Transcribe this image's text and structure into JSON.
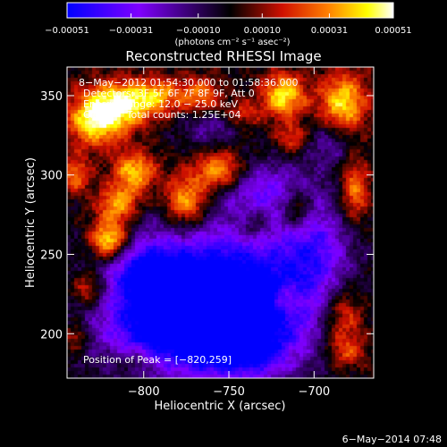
{
  "chart_data": {
    "type": "heatmap",
    "title": "Reconstructed RHESSI Image",
    "xlabel": "Heliocentric X (arcsec)",
    "ylabel": "Heliocentric Y (arcsec)",
    "xlim": [
      -845,
      -665
    ],
    "ylim": [
      172,
      368
    ],
    "x_ticks": [
      -800,
      -750,
      -700
    ],
    "x_tick_labels": [
      "−800",
      "−750",
      "−700"
    ],
    "y_ticks": [
      200,
      250,
      300,
      350
    ],
    "y_tick_labels": [
      "200",
      "250",
      "300",
      "350"
    ],
    "colorbar": {
      "min": -0.00051,
      "max": 0.00051,
      "ticks": [
        -0.00051,
        -0.00031,
        -0.0001,
        0.0001,
        0.00031,
        0.00051
      ],
      "tick_labels": [
        "−0.00051",
        "−0.00031",
        "−0.00010",
        "0.00010",
        "0.00031",
        "0.00051"
      ],
      "units_label": "(photons cm⁻² s⁻¹ asec⁻²)",
      "colormap": [
        "#0000ff",
        "#7f00ff",
        "#000000",
        "#d01000",
        "#ff8000",
        "#ffff00",
        "#ffffff"
      ]
    },
    "annotations": [
      "8−May−2012 01:54:30.000 to 01:58:36.000",
      "Detectors: 3F 5F 6F 7F 8F 9F, Att 0",
      "Energy Range: 12.0 − 25.0 keV",
      "Clean     Total counts: 1.25E+04"
    ],
    "peak_label": "Position of Peak = [−820,259]",
    "peak_position": [
      -820,
      259
    ],
    "timestamp": "6−May−2014 07:48",
    "blobs": [
      {
        "x": -820,
        "y": 259,
        "sx": 8,
        "sy": 9,
        "v": 1.0
      },
      {
        "x": -815,
        "y": 282,
        "sx": 9,
        "sy": 8,
        "v": 0.7
      },
      {
        "x": -805,
        "y": 302,
        "sx": 9,
        "sy": 9,
        "v": 0.75
      },
      {
        "x": -828,
        "y": 335,
        "sx": 12,
        "sy": 12,
        "v": 0.9
      },
      {
        "x": -812,
        "y": 345,
        "sx": 12,
        "sy": 10,
        "v": 0.78
      },
      {
        "x": -792,
        "y": 350,
        "sx": 10,
        "sy": 8,
        "v": 0.6
      },
      {
        "x": -840,
        "y": 300,
        "sx": 6,
        "sy": 8,
        "v": 0.55
      },
      {
        "x": -775,
        "y": 283,
        "sx": 9,
        "sy": 12,
        "v": 0.82
      },
      {
        "x": -755,
        "y": 302,
        "sx": 10,
        "sy": 9,
        "v": 0.78
      },
      {
        "x": -767,
        "y": 350,
        "sx": 9,
        "sy": 8,
        "v": 0.55
      },
      {
        "x": -742,
        "y": 338,
        "sx": 7,
        "sy": 6,
        "v": 0.4
      },
      {
        "x": -718,
        "y": 350,
        "sx": 9,
        "sy": 10,
        "v": 0.85
      },
      {
        "x": -713,
        "y": 323,
        "sx": 6,
        "sy": 6,
        "v": 0.45
      },
      {
        "x": -710,
        "y": 279,
        "sx": 6,
        "sy": 9,
        "v": 0.55
      },
      {
        "x": -683,
        "y": 345,
        "sx": 10,
        "sy": 14,
        "v": 0.8
      },
      {
        "x": -676,
        "y": 290,
        "sx": 6,
        "sy": 14,
        "v": 0.6
      },
      {
        "x": -832,
        "y": 228,
        "sx": 7,
        "sy": 8,
        "v": 0.55
      },
      {
        "x": -840,
        "y": 198,
        "sx": 5,
        "sy": 6,
        "v": 0.4
      },
      {
        "x": -716,
        "y": 222,
        "sx": 6,
        "sy": 6,
        "v": 0.45
      },
      {
        "x": -683,
        "y": 210,
        "sx": 9,
        "sy": 14,
        "v": 0.55
      },
      {
        "x": -680,
        "y": 188,
        "sx": 8,
        "sy": 7,
        "v": 0.4
      },
      {
        "x": -735,
        "y": 268,
        "sx": 6,
        "sy": 6,
        "v": 0.3
      },
      {
        "x": -805,
        "y": 183,
        "sx": 8,
        "sy": 6,
        "v": 0.3
      },
      {
        "x": -770,
        "y": 228,
        "sx": 35,
        "sy": 30,
        "v": -0.9
      },
      {
        "x": -735,
        "y": 215,
        "sx": 30,
        "sy": 28,
        "v": -0.8
      },
      {
        "x": -700,
        "y": 255,
        "sx": 15,
        "sy": 22,
        "v": -0.6
      },
      {
        "x": -790,
        "y": 205,
        "sx": 25,
        "sy": 20,
        "v": -0.7
      },
      {
        "x": -730,
        "y": 292,
        "sx": 20,
        "sy": 12,
        "v": -0.55
      },
      {
        "x": -800,
        "y": 240,
        "sx": 14,
        "sy": 12,
        "v": -0.5
      },
      {
        "x": -745,
        "y": 190,
        "sx": 18,
        "sy": 12,
        "v": -0.6
      },
      {
        "x": -690,
        "y": 320,
        "sx": 10,
        "sy": 10,
        "v": -0.4
      },
      {
        "x": -760,
        "y": 330,
        "sx": 12,
        "sy": 8,
        "v": -0.35
      }
    ]
  }
}
